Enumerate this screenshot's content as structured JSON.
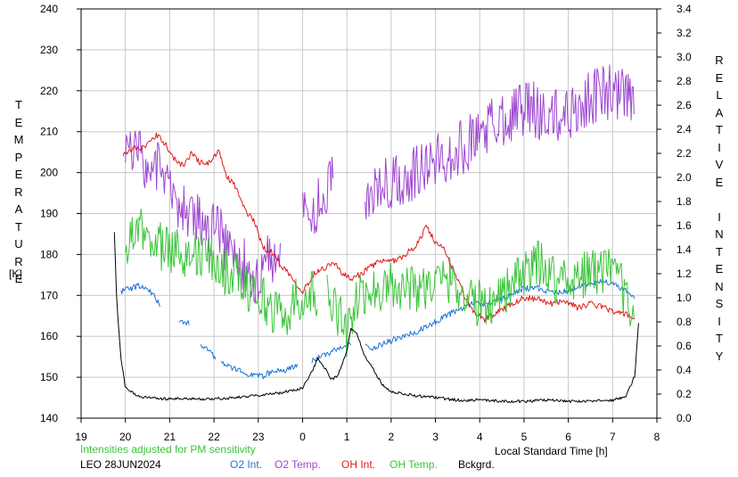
{
  "chart_data": {
    "type": "line",
    "note": "Intensities adjusted for PM sensitivity",
    "xlabel": "Local Standard Time [h]",
    "ylabel_left": "TEMPERATURE",
    "ylabel_left_unit": "[K]",
    "ylabel_right": "RELATIVE INTENSITY",
    "station": "LEO 28JUN2024",
    "x_ticks": [
      "19",
      "20",
      "21",
      "22",
      "23",
      "0",
      "1",
      "2",
      "3",
      "4",
      "5",
      "6",
      "7",
      "8"
    ],
    "x_range": [
      19,
      32
    ],
    "y_left_range": [
      140,
      240
    ],
    "y_left_ticks": [
      140,
      150,
      160,
      170,
      180,
      190,
      200,
      210,
      220,
      230,
      240
    ],
    "y_right_range": [
      0.0,
      3.4
    ],
    "y_right_ticks": [
      "0.0",
      "0.2",
      "0.4",
      "0.6",
      "0.8",
      "1.0",
      "1.2",
      "1.4",
      "1.6",
      "1.8",
      "2.0",
      "2.2",
      "2.4",
      "2.6",
      "2.8",
      "3.0",
      "3.2",
      "3.4"
    ],
    "series": [
      {
        "name": "O2 Int.",
        "color": "#1e73d6",
        "axis": "right",
        "noise": 0.025,
        "x": [
          19.9,
          20.3,
          20.6,
          20.8,
          21.0,
          21.2,
          21.5,
          21.7,
          21.9,
          22.1,
          22.4,
          22.7,
          22.9,
          23.1,
          23.3,
          23.6,
          23.9,
          24.2,
          24.6,
          24.9,
          25.2,
          25.4,
          25.6,
          25.9,
          26.3,
          26.6,
          26.9,
          27.2,
          27.5,
          27.8,
          28.1,
          28.4,
          28.7,
          29.0,
          29.3,
          29.6,
          29.9,
          30.2,
          30.5,
          30.8,
          31.1,
          31.4,
          31.5
        ],
        "y": [
          1.05,
          1.1,
          1.04,
          0.92,
          0.86,
          0.8,
          0.78,
          0.62,
          0.55,
          0.48,
          0.42,
          0.38,
          0.36,
          0.35,
          0.38,
          0.4,
          0.44,
          0.48,
          0.54,
          0.6,
          0.62,
          0.62,
          0.58,
          0.63,
          0.68,
          0.72,
          0.78,
          0.84,
          0.9,
          0.95,
          0.95,
          0.98,
          1.02,
          1.08,
          1.08,
          1.04,
          1.05,
          1.08,
          1.12,
          1.14,
          1.1,
          1.04,
          1.0
        ],
        "gaps": [
          [
            20.8,
            21.2
          ],
          [
            21.45,
            21.7
          ],
          [
            22.05,
            22.15
          ],
          [
            23.9,
            24.2
          ],
          [
            25.1,
            25.4
          ]
        ]
      },
      {
        "name": "O2 Temp.",
        "color": "#9d46d0",
        "axis": "left",
        "noise": 7,
        "x": [
          20.0,
          20.3,
          20.6,
          20.9,
          21.1,
          21.3,
          21.6,
          21.9,
          22.1,
          22.4,
          22.6,
          22.9,
          23.2,
          23.5,
          23.8,
          24.0,
          24.4,
          24.7,
          25.0,
          25.4,
          25.6,
          25.9,
          26.2,
          26.5,
          26.8,
          27.1,
          27.4,
          27.7,
          28.0,
          28.3,
          28.6,
          29.0,
          29.3,
          29.6,
          29.9,
          30.2,
          30.5,
          30.8,
          31.1,
          31.4,
          31.5
        ],
        "y": [
          207,
          204,
          202,
          200,
          195,
          190,
          190,
          186,
          185,
          181,
          178,
          174,
          178,
          182,
          186,
          192,
          192,
          198,
          190,
          192,
          196,
          198,
          199,
          200,
          202,
          203,
          205,
          207,
          210,
          212,
          214,
          216,
          215,
          213,
          214,
          216,
          218,
          220,
          219,
          218,
          216
        ],
        "gaps": [
          [
            23.5,
            24.0
          ],
          [
            24.7,
            25.4
          ]
        ]
      },
      {
        "name": "OH Int.",
        "color": "#e01b1b",
        "axis": "right",
        "noise": 0.025,
        "x": [
          19.95,
          20.2,
          20.45,
          20.7,
          20.9,
          21.1,
          21.3,
          21.5,
          21.7,
          21.9,
          22.1,
          22.3,
          22.5,
          22.7,
          22.9,
          23.1,
          23.3,
          23.5,
          23.7,
          24.0,
          24.3,
          24.5,
          24.7,
          24.9,
          25.1,
          25.4,
          25.7,
          26.0,
          26.3,
          26.6,
          26.8,
          27.0,
          27.2,
          27.5,
          27.8,
          28.1,
          28.4,
          28.7,
          29.0,
          29.3,
          29.6,
          29.9,
          30.2,
          30.5,
          30.8,
          31.1,
          31.4,
          31.5
        ],
        "y": [
          2.18,
          2.25,
          2.25,
          2.35,
          2.28,
          2.15,
          2.1,
          2.2,
          2.12,
          2.12,
          2.22,
          2.0,
          1.92,
          1.72,
          1.65,
          1.42,
          1.38,
          1.28,
          1.2,
          1.05,
          1.22,
          1.25,
          1.3,
          1.2,
          1.15,
          1.22,
          1.3,
          1.3,
          1.35,
          1.45,
          1.6,
          1.45,
          1.4,
          1.15,
          0.9,
          0.82,
          0.88,
          0.95,
          1.0,
          0.99,
          0.95,
          0.98,
          0.92,
          0.95,
          0.92,
          0.88,
          0.85,
          0.82
        ]
      },
      {
        "name": "OH Temp.",
        "color": "#3bc43b",
        "axis": "left",
        "noise": 6,
        "x": [
          20.0,
          20.2,
          20.4,
          20.6,
          20.8,
          21.0,
          21.2,
          21.4,
          21.6,
          21.8,
          22.0,
          22.2,
          22.4,
          22.6,
          22.8,
          23.0,
          23.2,
          23.4,
          23.6,
          23.8,
          24.0,
          24.2,
          24.4,
          24.6,
          24.8,
          25.0,
          25.2,
          25.5,
          25.8,
          26.1,
          26.4,
          26.7,
          27.0,
          27.3,
          27.6,
          27.9,
          28.2,
          28.5,
          28.8,
          29.1,
          29.4,
          29.7,
          30.0,
          30.3,
          30.6,
          30.9,
          31.2,
          31.5
        ],
        "y": [
          181,
          184,
          186,
          184,
          182,
          181,
          182,
          180,
          180,
          179,
          178,
          176,
          176,
          174,
          172,
          170,
          168,
          166,
          165,
          168,
          170,
          171,
          168,
          170,
          166,
          160,
          168,
          171,
          172,
          173,
          172,
          172,
          173,
          174,
          171,
          168,
          168,
          171,
          173,
          176,
          178,
          174,
          174,
          175,
          176,
          176,
          172,
          166
        ],
        "gaps": [
          [
            24.35,
            24.55
          ]
        ]
      },
      {
        "name": "Bckgrd.",
        "color": "#000000",
        "axis": "right",
        "noise": 0.012,
        "x": [
          19.75,
          19.8,
          19.9,
          20.0,
          20.3,
          20.8,
          21.5,
          22.0,
          22.5,
          23.0,
          23.5,
          24.0,
          24.2,
          24.35,
          24.5,
          24.65,
          24.8,
          25.0,
          25.1,
          25.25,
          25.4,
          25.6,
          25.8,
          26.0,
          26.3,
          26.7,
          27.0,
          27.5,
          28.0,
          28.5,
          29.0,
          29.5,
          30.0,
          30.5,
          31.0,
          31.3,
          31.5,
          31.6
        ],
        "y": [
          1.55,
          1.0,
          0.5,
          0.25,
          0.18,
          0.16,
          0.16,
          0.16,
          0.17,
          0.19,
          0.21,
          0.25,
          0.38,
          0.5,
          0.42,
          0.32,
          0.36,
          0.55,
          0.75,
          0.68,
          0.52,
          0.4,
          0.28,
          0.22,
          0.2,
          0.18,
          0.17,
          0.15,
          0.15,
          0.14,
          0.14,
          0.15,
          0.14,
          0.14,
          0.15,
          0.18,
          0.35,
          0.85
        ]
      }
    ]
  },
  "legend": [
    {
      "label": "O2 Int.",
      "color": "#1e73d6"
    },
    {
      "label": "O2 Temp.",
      "color": "#9d46d0"
    },
    {
      "label": "OH Int.",
      "color": "#e01b1b"
    },
    {
      "label": "OH Temp.",
      "color": "#3bc43b"
    },
    {
      "label": "Bckgrd.",
      "color": "#000000"
    }
  ]
}
